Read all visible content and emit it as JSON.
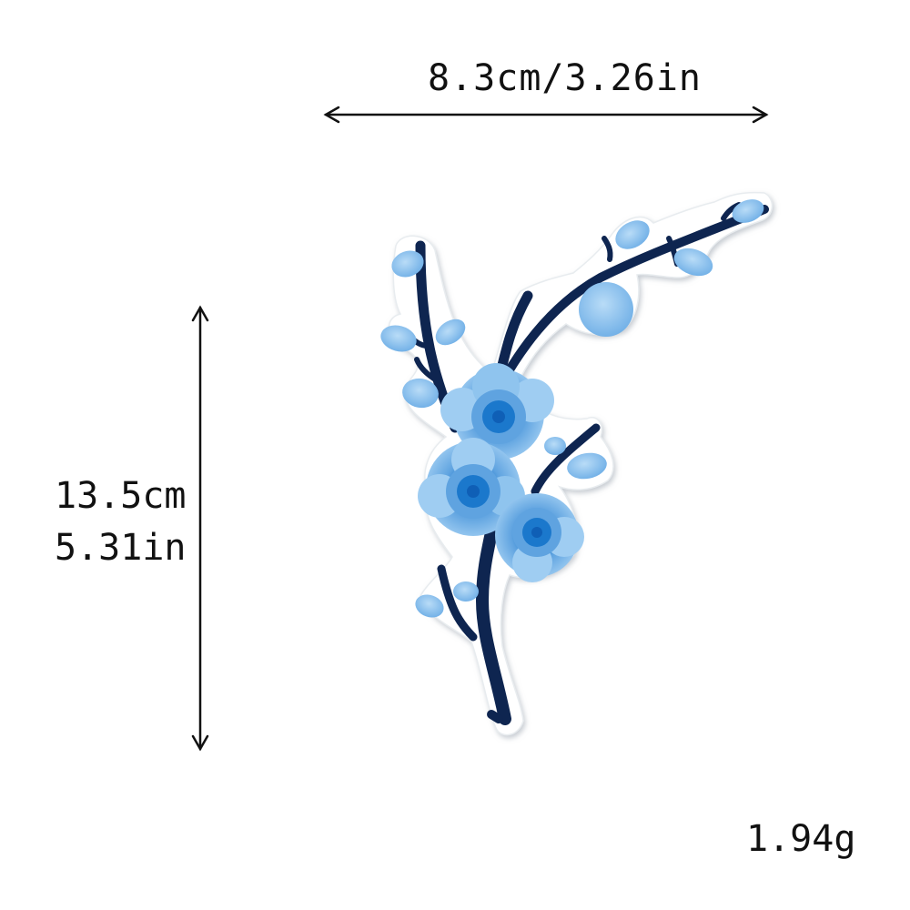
{
  "dimensions": {
    "width_label": "8.3cm/3.26in",
    "height_label_cm": "13.5cm",
    "height_label_in": "5.31in"
  },
  "weight_label": "1.94g",
  "colors": {
    "branch": "#0e2550",
    "petal_light": "#8fc4ee",
    "petal_mid": "#5fa3e0",
    "petal_center": "#1b78cc",
    "patch_backing": "#ffffff",
    "arrow": "#111111"
  },
  "product": {
    "subject": "embroidered plum blossom branch patch"
  }
}
